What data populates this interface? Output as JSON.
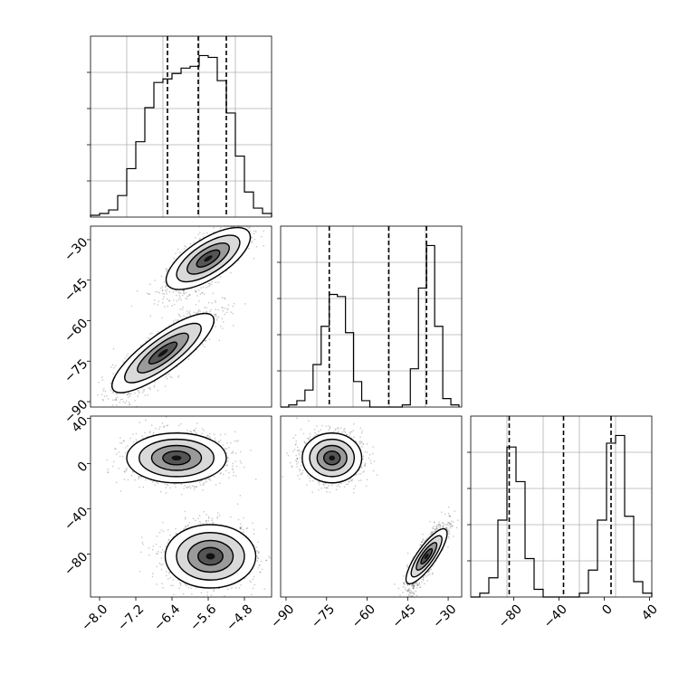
{
  "chart_data": [
    {
      "type": "histogram",
      "panel": "diag-p1",
      "xlim": [
        -8.2,
        -4.2
      ],
      "bin_edges": [
        -8.2,
        -8.0,
        -7.8,
        -7.6,
        -7.4,
        -7.2,
        -7.0,
        -6.8,
        -6.6,
        -6.4,
        -6.2,
        -6.0,
        -5.8,
        -5.6,
        -5.4,
        -5.2,
        -5.0,
        -4.8,
        -4.6,
        -4.4,
        -4.2
      ],
      "counts": [
        1,
        2,
        4,
        12,
        27,
        42,
        61,
        75,
        77,
        80,
        83,
        84,
        90,
        89,
        76,
        58,
        34,
        14,
        5,
        2
      ],
      "quantile_lines": [
        -6.5,
        -5.82,
        -5.2
      ],
      "grid": true
    },
    {
      "type": "scatter_density",
      "panel": "p2-vs-p1",
      "xlim": [
        -8.2,
        -4.2
      ],
      "ylim": [
        -92,
        -25
      ],
      "clusters": [
        {
          "center": [
            -5.6,
            -37
          ],
          "spread": [
            0.45,
            6.5
          ],
          "corr": 0.75
        },
        {
          "center": [
            -6.6,
            -72
          ],
          "spread": [
            0.55,
            8
          ],
          "corr": 0.85
        }
      ],
      "ytick_labels": [
        "-30",
        "-45",
        "-60",
        "-75",
        "-90"
      ],
      "yticks": [
        -30,
        -45,
        -60,
        -75,
        -90
      ]
    },
    {
      "type": "histogram",
      "panel": "diag-p2",
      "xlim": [
        -92,
        -25
      ],
      "bin_edges": [
        -92,
        -89,
        -86,
        -83,
        -80,
        -77,
        -74,
        -71,
        -68,
        -65,
        -62,
        -59,
        -56,
        -53,
        -50,
        -47,
        -44,
        -41,
        -38,
        -35,
        -32,
        -29,
        -26
      ],
      "counts": [
        0,
        1,
        3,
        8,
        20,
        38,
        53,
        52,
        35,
        12,
        3,
        0,
        0,
        0,
        0,
        1,
        18,
        56,
        76,
        38,
        4,
        1
      ],
      "quantile_lines": [
        -74,
        -52,
        -38
      ],
      "grid": true
    },
    {
      "type": "scatter_density",
      "panel": "p3-vs-p1",
      "xlim": [
        -8.2,
        -4.2
      ],
      "ylim": [
        -118,
        42
      ],
      "clusters": [
        {
          "center": [
            -6.3,
            5
          ],
          "spread": [
            0.55,
            11
          ],
          "corr": 0.0
        },
        {
          "center": [
            -5.55,
            -82
          ],
          "spread": [
            0.5,
            14
          ],
          "corr": 0.0
        }
      ],
      "xtick_labels": [
        "-8.0",
        "-7.2",
        "-6.4",
        "-5.6",
        "-4.8"
      ],
      "xticks": [
        -8.0,
        -7.2,
        -6.4,
        -5.6,
        -4.8
      ],
      "ytick_labels": [
        "40",
        "0",
        "-40",
        "-80"
      ],
      "yticks": [
        40,
        0,
        -40,
        -80
      ]
    },
    {
      "type": "scatter_density",
      "panel": "p3-vs-p2",
      "xlim": [
        -92,
        -25
      ],
      "ylim": [
        -118,
        42
      ],
      "clusters": [
        {
          "center": [
            -73,
            5
          ],
          "spread": [
            5.5,
            11
          ],
          "corr": 0.0
        },
        {
          "center": [
            -38,
            -82
          ],
          "spread": [
            3.5,
            14
          ],
          "corr": 0.85
        }
      ],
      "xtick_labels": [
        "-90",
        "-75",
        "-60",
        "-45",
        "-30"
      ],
      "xticks": [
        -90,
        -75,
        -60,
        -45,
        -30
      ]
    },
    {
      "type": "histogram",
      "panel": "diag-p3",
      "xlim": [
        -118,
        42
      ],
      "bin_edges": [
        -118,
        -110,
        -102,
        -94,
        -86,
        -78,
        -70,
        -62,
        -54,
        -46,
        -38,
        -30,
        -22,
        -14,
        -6,
        2,
        10,
        18,
        26,
        34,
        42
      ],
      "counts": [
        0,
        1,
        5,
        20,
        39,
        30,
        10,
        2,
        0,
        0,
        0,
        0,
        1,
        7,
        20,
        40,
        42,
        21,
        4,
        1
      ],
      "quantile_lines": [
        -84,
        -36,
        6
      ],
      "xtick_labels": [
        "-80",
        "-40",
        "0",
        "40"
      ],
      "xticks": [
        -80,
        -40,
        0,
        40
      ],
      "grid": true
    }
  ]
}
